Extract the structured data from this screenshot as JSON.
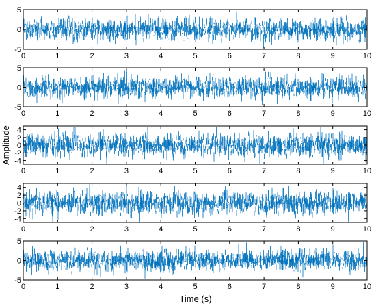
{
  "chart_data": {
    "type": "line",
    "color": "#0072BD",
    "xlabel": "Time (s)",
    "ylabel": "Amplitude",
    "signal_description_note": "",
    "xlim": [
      0,
      10
    ],
    "xticks": [
      0,
      1,
      2,
      3,
      4,
      5,
      6,
      7,
      8,
      9,
      10
    ],
    "subplots": [
      {
        "ylim": [
          -5,
          5
        ],
        "yticks": [
          -5,
          0,
          5
        ],
        "typical_amplitude": 3.0,
        "peak_amplitude": 4.7
      },
      {
        "ylim": [
          -5,
          5
        ],
        "yticks": [
          -5,
          0,
          5
        ],
        "typical_amplitude": 3.0,
        "peak_amplitude": 4.6
      },
      {
        "ylim": [
          -5,
          5
        ],
        "yticks": [
          -4,
          -2,
          0,
          2,
          4
        ],
        "typical_amplitude": 3.3,
        "peak_amplitude": 4.8
      },
      {
        "ylim": [
          -5,
          5
        ],
        "yticks": [
          -4,
          -2,
          0,
          2,
          4
        ],
        "typical_amplitude": 3.3,
        "peak_amplitude": 4.8
      },
      {
        "ylim": [
          -5,
          5
        ],
        "yticks": [
          -5,
          0,
          5
        ],
        "typical_amplitude": 3.0,
        "peak_amplitude": 4.7
      }
    ]
  }
}
